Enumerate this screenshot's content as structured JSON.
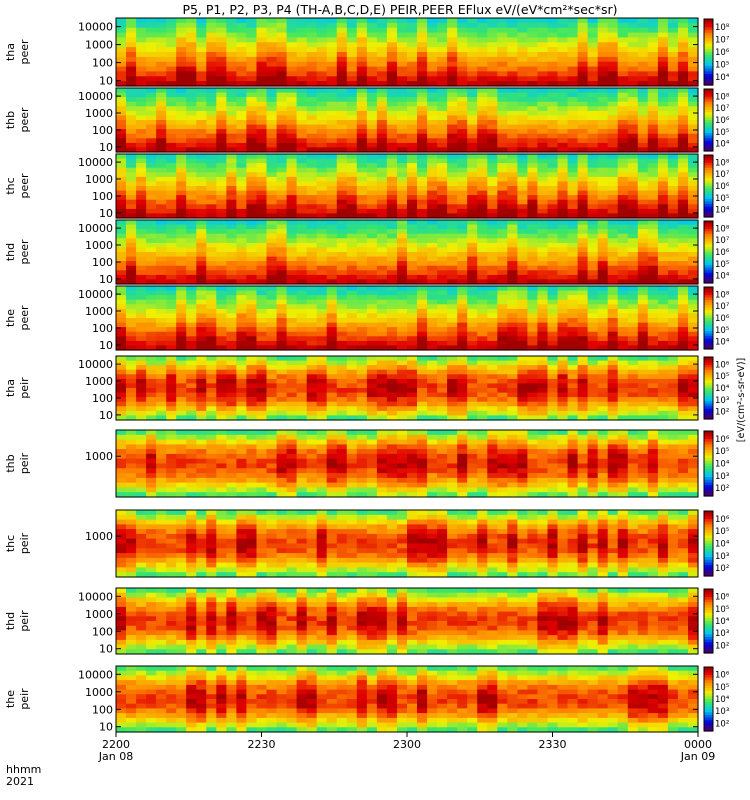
{
  "chart_data": {
    "type": "heatmap",
    "title": "P5, P1, P2, P3, P4 (TH-A,B,C,D,E) PEIR,PEER EFlux eV/(eV*cm²*sec*sr)",
    "x_axis": {
      "row_label_1": "hhmm",
      "row_label_2": "2021",
      "ticks": [
        {
          "time": "2200",
          "date": "Jan 08"
        },
        {
          "time": "2230",
          "date": ""
        },
        {
          "time": "2300",
          "date": ""
        },
        {
          "time": "2330",
          "date": ""
        },
        {
          "time": "0000",
          "date": "Jan 09"
        }
      ],
      "range": [
        "2021-01-08 22:00",
        "2021-01-09 00:00"
      ]
    },
    "colorbar": {
      "label": "[eV/(cm²-s-sr-eV)]",
      "log": true,
      "peer_ticks": [
        "10⁴",
        "10⁵",
        "10⁶",
        "10⁷",
        "10⁸"
      ],
      "peir_ticks": [
        "10²",
        "10³",
        "10⁴",
        "10⁵",
        "10⁶"
      ]
    },
    "panels": [
      {
        "probe": "tha",
        "species": "peer",
        "yticks": [
          "10000",
          "1000",
          "100",
          "10"
        ],
        "ylim": [
          5,
          30000
        ],
        "ylog": true
      },
      {
        "probe": "thb",
        "species": "peer",
        "yticks": [
          "10000",
          "1000",
          "100",
          "10"
        ],
        "ylim": [
          5,
          30000
        ],
        "ylog": true
      },
      {
        "probe": "thc",
        "species": "peer",
        "yticks": [
          "10000",
          "1000",
          "100",
          "10"
        ],
        "ylim": [
          5,
          30000
        ],
        "ylog": true
      },
      {
        "probe": "thd",
        "species": "peer",
        "yticks": [
          "10000",
          "1000",
          "100",
          "10"
        ],
        "ylim": [
          5,
          30000
        ],
        "ylog": true
      },
      {
        "probe": "the",
        "species": "peer",
        "yticks": [
          "10000",
          "1000",
          "100",
          "10"
        ],
        "ylim": [
          5,
          30000
        ],
        "ylog": true
      },
      {
        "probe": "tha",
        "species": "peir",
        "yticks": [
          "10000",
          "1000",
          "100",
          "10"
        ],
        "ylim": [
          5,
          30000
        ],
        "ylog": true
      },
      {
        "probe": "thb",
        "species": "peir",
        "yticks": [
          "1000"
        ],
        "ylim": [
          5,
          30000
        ],
        "ylog": true
      },
      {
        "probe": "thc",
        "species": "peir",
        "yticks": [
          "1000"
        ],
        "ylim": [
          5,
          30000
        ],
        "ylog": true
      },
      {
        "probe": "thd",
        "species": "peir",
        "yticks": [
          "10000",
          "1000",
          "100",
          "10"
        ],
        "ylim": [
          5,
          30000
        ],
        "ylog": true
      },
      {
        "probe": "the",
        "species": "peir",
        "yticks": [
          "10000",
          "1000",
          "100",
          "10"
        ],
        "ylim": [
          5,
          30000
        ],
        "ylog": true
      }
    ]
  }
}
